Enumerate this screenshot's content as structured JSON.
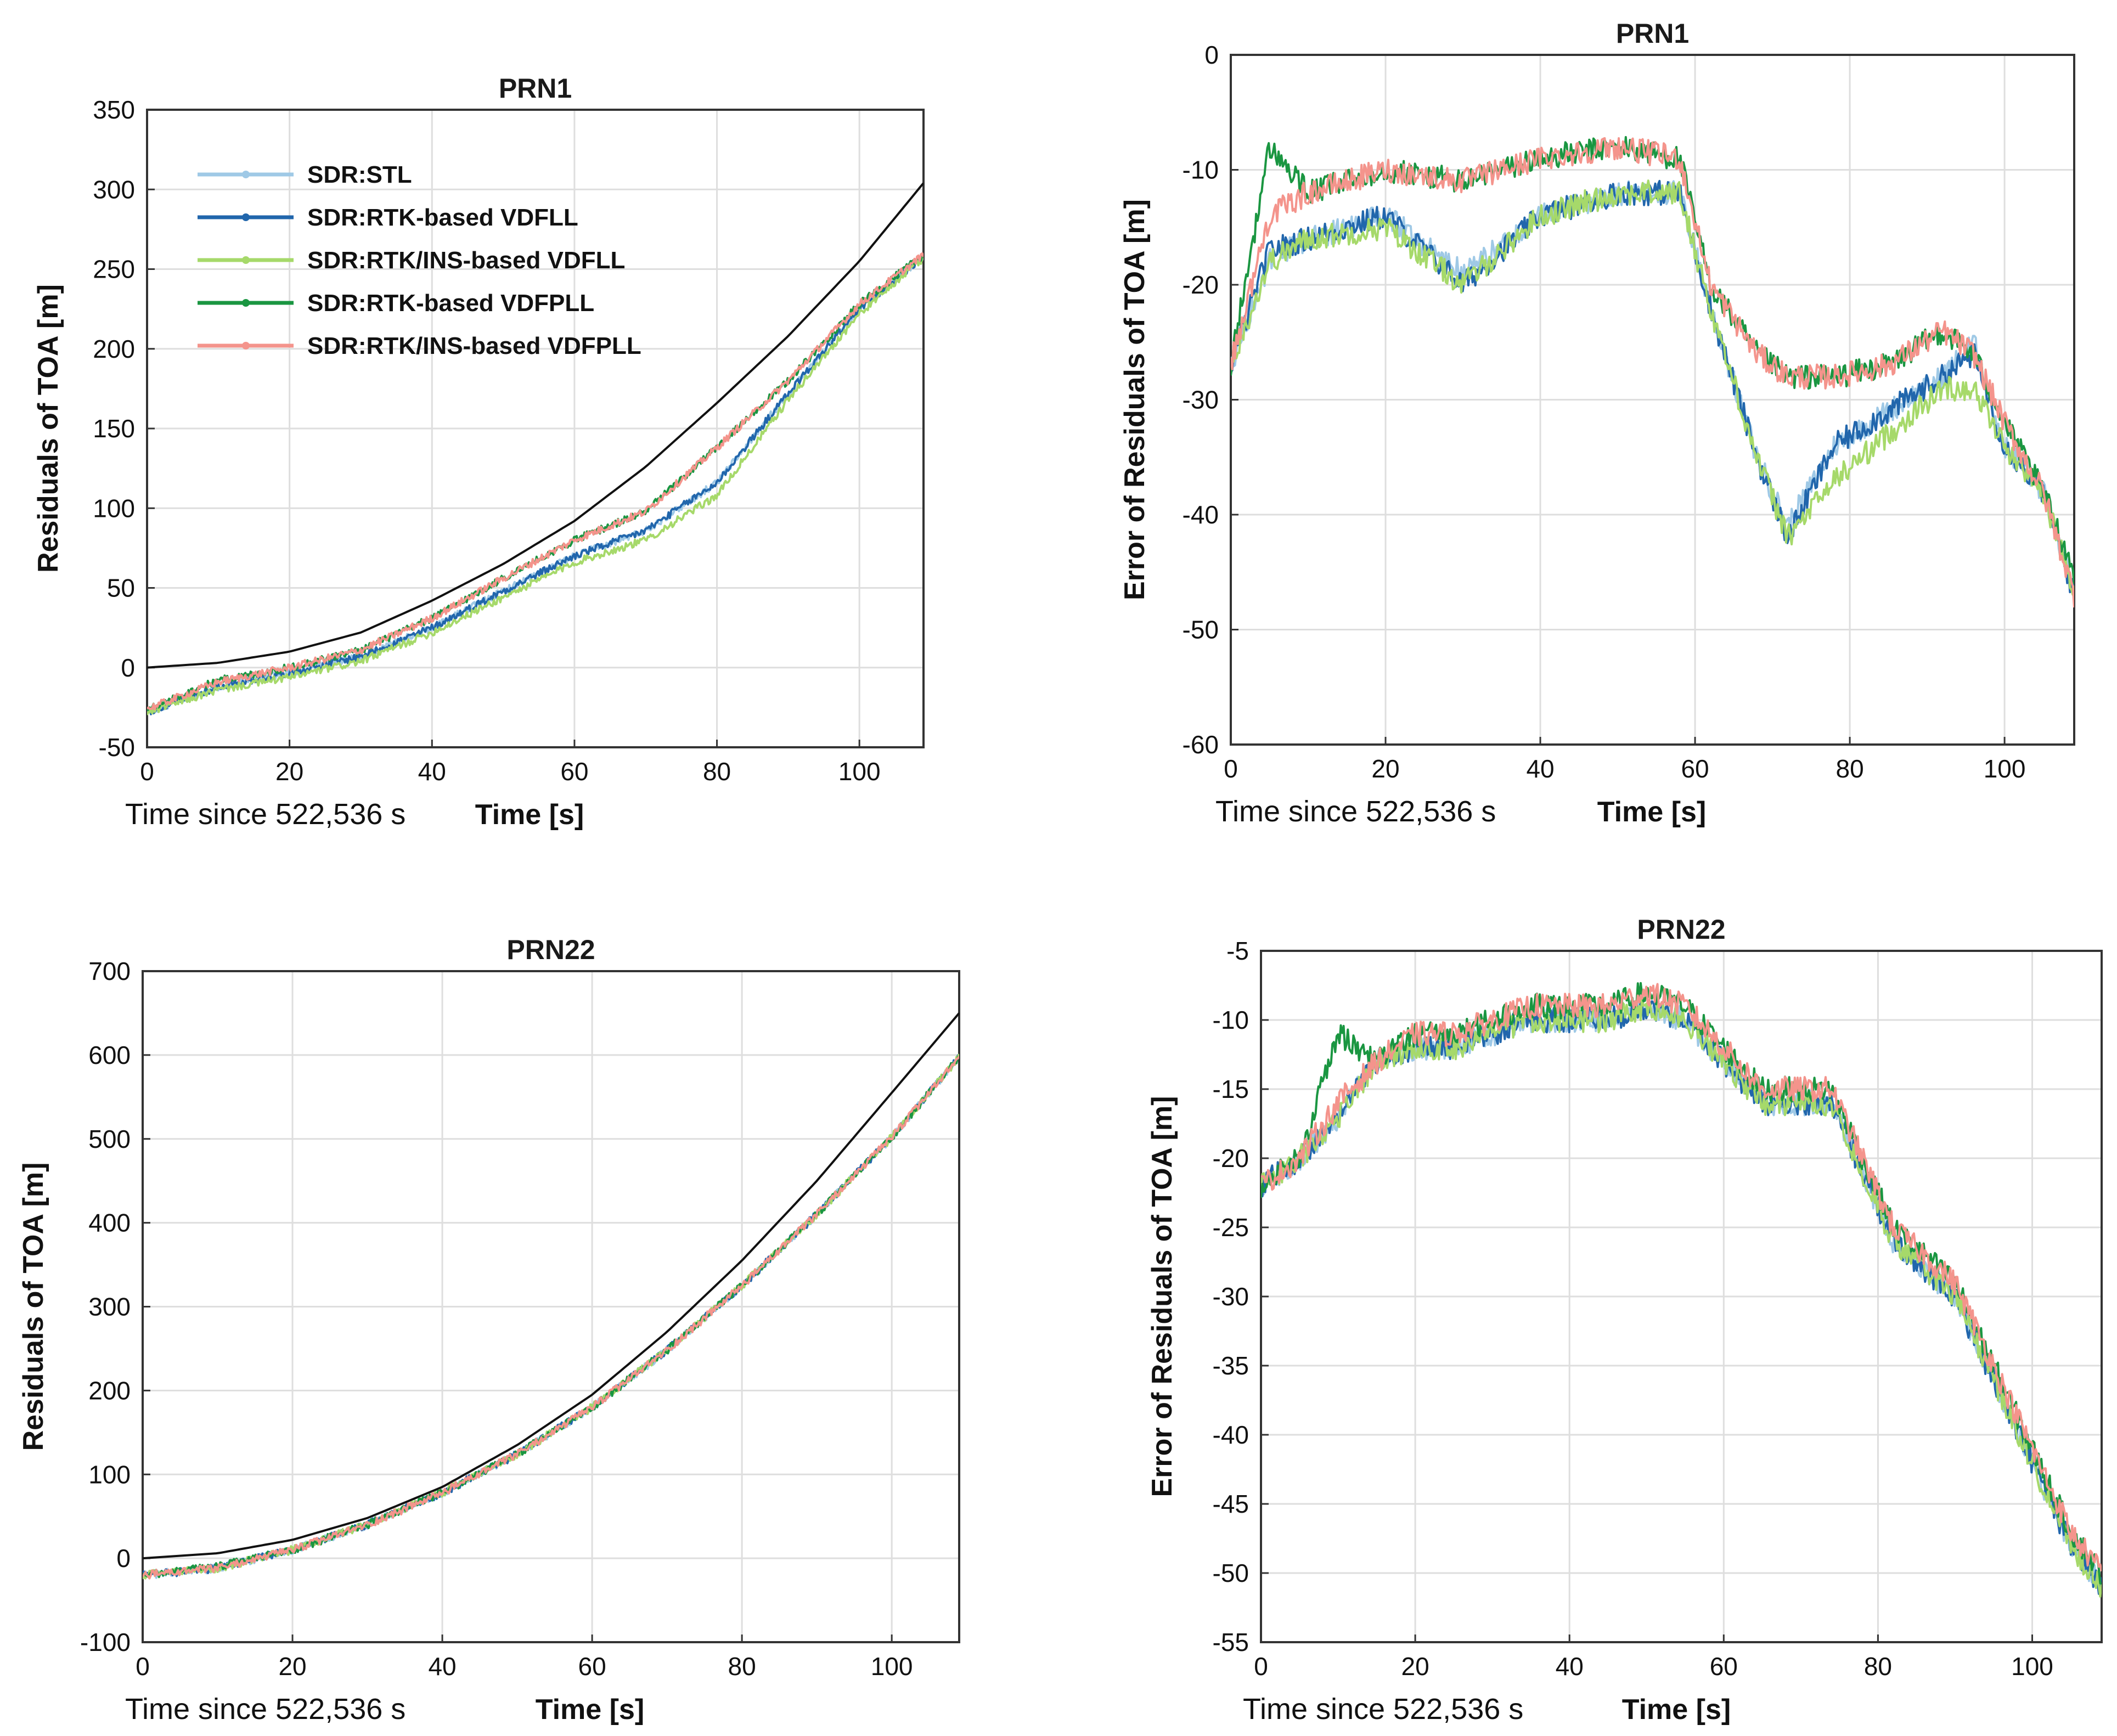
{
  "colors": {
    "SDR:STL": "#9fc9e6",
    "SDR:RTK-based VDFLL": "#2166ac",
    "SDR:RTK/INS-based VDFLL": "#a6d96a",
    "SDR:RTK-based VDFPLL": "#1a9641",
    "SDR:RTK/INS-based VDFPLL": "#f4948c",
    "reference": "#111111"
  },
  "chart_data": [
    {
      "type": "line",
      "title": "PRN1",
      "xlabel": "Time [s]",
      "xnote": "Time since 522,536 s",
      "ylabel": "Residuals of TOA [m]",
      "xlim": [
        0,
        109
      ],
      "ylim": [
        -50,
        350
      ],
      "xticks": [
        0,
        20,
        40,
        60,
        80,
        100
      ],
      "yticks": [
        -50,
        0,
        50,
        100,
        150,
        200,
        250,
        300,
        350
      ],
      "grid": true,
      "legend": {
        "placement": "top-left",
        "entries": [
          "SDR:STL",
          "SDR:RTK-based VDFLL",
          "SDR:RTK/INS-based VDFLL",
          "SDR:RTK-based VDFPLL",
          "SDR:RTK/INS-based VDFPLL"
        ]
      },
      "x": [
        0,
        10,
        20,
        30,
        40,
        50,
        60,
        70,
        80,
        90,
        100,
        109
      ],
      "series": [
        {
          "name": "",
          "color_key": "reference",
          "values": [
            0,
            3,
            10,
            22,
            42,
            65,
            92,
            126,
            166,
            208,
            255,
            304
          ]
        },
        {
          "name": "SDR:STL",
          "values": [
            -28,
            -12,
            -3,
            7,
            25,
            48,
            70,
            86,
            116,
            172,
            225,
            258
          ]
        },
        {
          "name": "SDR:RTK-based VDFLL",
          "values": [
            -28,
            -12,
            -3,
            7,
            25,
            48,
            70,
            86,
            116,
            172,
            225,
            258
          ]
        },
        {
          "name": "SDR:RTK/INS-based VDFLL",
          "values": [
            -28,
            -14,
            -6,
            4,
            22,
            44,
            66,
            80,
            108,
            168,
            222,
            257
          ]
        },
        {
          "name": "SDR:RTK-based VDFPLL",
          "values": [
            -26,
            -8,
            0,
            11,
            31,
            56,
            80,
            98,
            138,
            180,
            228,
            259
          ]
        },
        {
          "name": "SDR:RTK/INS-based VDFPLL",
          "values": [
            -26,
            -9,
            0,
            11,
            31,
            56,
            80,
            98,
            138,
            180,
            228,
            259
          ]
        }
      ]
    },
    {
      "type": "line",
      "title": "PRN1",
      "xlabel": "Time [s]",
      "xnote": "Time since 522,536 s",
      "ylabel": "Error of Residuals of TOA [m]",
      "xlim": [
        0,
        109
      ],
      "ylim": [
        -60,
        0
      ],
      "xticks": [
        0,
        20,
        40,
        60,
        80,
        100
      ],
      "yticks": [
        -60,
        -50,
        -40,
        -30,
        -20,
        -10,
        0
      ],
      "grid": true,
      "x": [
        0,
        5,
        10,
        20,
        30,
        40,
        50,
        58,
        62,
        68,
        72,
        78,
        85,
        92,
        96,
        100,
        105,
        109
      ],
      "series": [
        {
          "name": "SDR:STL",
          "values": [
            -27,
            -18,
            -16,
            -14,
            -19,
            -14,
            -12,
            -12,
            -22,
            -35,
            -41,
            -34,
            -31,
            -28,
            -25,
            -34,
            -38,
            -47
          ]
        },
        {
          "name": "SDR:RTK-based VDFLL",
          "values": [
            -27,
            -17,
            -16,
            -14,
            -20,
            -14,
            -12,
            -12,
            -22,
            -35,
            -42,
            -34,
            -31,
            -28,
            -26,
            -34,
            -38,
            -47
          ]
        },
        {
          "name": "SDR:RTK/INS-based VDFLL",
          "values": [
            -27,
            -18,
            -16,
            -15,
            -20,
            -14,
            -12,
            -12,
            -22,
            -35,
            -42,
            -37,
            -33,
            -29,
            -29,
            -34,
            -38,
            -47
          ]
        },
        {
          "name": "SDR:RTK-based VDFPLL",
          "values": [
            -27,
            -8,
            -12,
            -10,
            -11,
            -9,
            -8,
            -9,
            -20,
            -26,
            -28,
            -28,
            -27,
            -24,
            -26,
            -32,
            -38,
            -45
          ]
        },
        {
          "name": "SDR:RTK/INS-based VDFPLL",
          "values": [
            -27,
            -14,
            -12,
            -10,
            -11,
            -9,
            -8,
            -9,
            -20,
            -26,
            -28,
            -28,
            -27,
            -24,
            -26,
            -32,
            -38,
            -47
          ]
        }
      ]
    },
    {
      "type": "line",
      "title": "PRN22",
      "xlabel": "Time [s]",
      "xnote": "Time since 522,536 s",
      "ylabel": "Residuals of TOA [m]",
      "xlim": [
        0,
        109
      ],
      "ylim": [
        -100,
        700
      ],
      "xticks": [
        0,
        20,
        40,
        60,
        80,
        100
      ],
      "yticks": [
        -100,
        0,
        100,
        200,
        300,
        400,
        500,
        600,
        700
      ],
      "grid": true,
      "x": [
        0,
        10,
        20,
        30,
        40,
        50,
        60,
        70,
        80,
        90,
        100,
        109
      ],
      "series": [
        {
          "name": "",
          "color_key": "reference",
          "values": [
            0,
            6,
            22,
            48,
            85,
            135,
            195,
            270,
            355,
            450,
            555,
            650
          ]
        },
        {
          "name": "SDR:STL",
          "values": [
            -20,
            -12,
            10,
            40,
            78,
            124,
            180,
            248,
            325,
            410,
            502,
            597
          ]
        },
        {
          "name": "SDR:RTK-based VDFLL",
          "values": [
            -20,
            -12,
            10,
            40,
            78,
            124,
            180,
            248,
            325,
            410,
            502,
            597
          ]
        },
        {
          "name": "SDR:RTK/INS-based VDFLL",
          "values": [
            -20,
            -12,
            10,
            40,
            78,
            124,
            180,
            248,
            325,
            410,
            502,
            597
          ]
        },
        {
          "name": "SDR:RTK-based VDFPLL",
          "values": [
            -20,
            -10,
            10,
            40,
            78,
            124,
            180,
            248,
            325,
            410,
            502,
            597
          ]
        },
        {
          "name": "SDR:RTK/INS-based VDFPLL",
          "values": [
            -20,
            -12,
            10,
            40,
            78,
            124,
            180,
            248,
            325,
            410,
            502,
            597
          ]
        }
      ]
    },
    {
      "type": "line",
      "title": "PRN22",
      "xlabel": "Time [s]",
      "xnote": "Time since 522,536 s",
      "ylabel": "Error of Residuals of TOA [m]",
      "xlim": [
        0,
        109
      ],
      "ylim": [
        -55,
        -5
      ],
      "xticks": [
        0,
        20,
        40,
        60,
        80,
        100
      ],
      "yticks": [
        -55,
        -50,
        -45,
        -40,
        -35,
        -30,
        -25,
        -20,
        -15,
        -10,
        -5
      ],
      "grid": true,
      "x": [
        0,
        5,
        10,
        15,
        20,
        25,
        30,
        35,
        40,
        45,
        50,
        55,
        60,
        65,
        70,
        74,
        78,
        82,
        86,
        90,
        95,
        100,
        105,
        109
      ],
      "series": [
        {
          "name": "SDR:STL",
          "values": [
            -22,
            -20,
            -17,
            -13,
            -12,
            -12,
            -11,
            -10,
            -10,
            -10,
            -9,
            -10,
            -13,
            -16,
            -16,
            -16,
            -21,
            -26,
            -28,
            -30,
            -36,
            -42,
            -48,
            -51
          ]
        },
        {
          "name": "SDR:RTK-based VDFLL",
          "values": [
            -22,
            -20,
            -17,
            -13,
            -12,
            -12,
            -11,
            -10,
            -10,
            -10,
            -9,
            -10,
            -13,
            -16,
            -16,
            -16,
            -21,
            -26,
            -28,
            -30,
            -36,
            -42,
            -48,
            -51
          ]
        },
        {
          "name": "SDR:RTK/INS-based VDFLL",
          "values": [
            -22,
            -20,
            -17,
            -13,
            -12,
            -12,
            -11,
            -10,
            -10,
            -10,
            -9,
            -10,
            -13,
            -16,
            -16,
            -16,
            -21,
            -26,
            -28,
            -30,
            -36,
            -42,
            -48,
            -51
          ]
        },
        {
          "name": "SDR:RTK-based VDFPLL",
          "values": [
            -22,
            -20,
            -11,
            -13,
            -11,
            -11,
            -10,
            -9,
            -9,
            -9,
            -8,
            -9,
            -12,
            -15,
            -15,
            -15,
            -20,
            -25,
            -27,
            -29,
            -35,
            -41,
            -47,
            -50
          ]
        },
        {
          "name": "SDR:RTK/INS-based VDFPLL",
          "values": [
            -22,
            -20,
            -16,
            -13,
            -11,
            -11,
            -10,
            -9,
            -9,
            -9,
            -8,
            -9,
            -12,
            -15,
            -15,
            -15,
            -20,
            -25,
            -27,
            -29,
            -35,
            -41,
            -47,
            -50
          ]
        }
      ]
    }
  ]
}
